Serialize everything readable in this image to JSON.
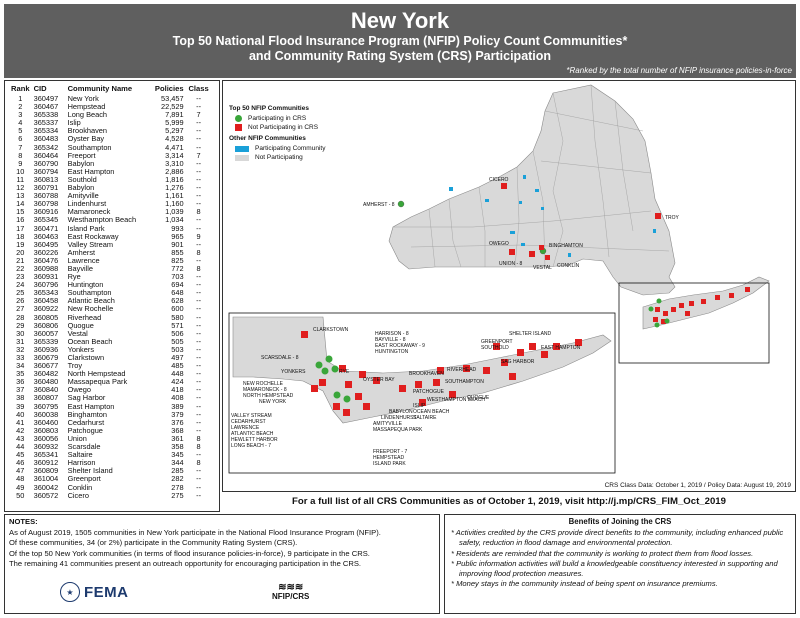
{
  "header": {
    "title": "New York",
    "subtitle_line1": "Top 50 National Flood Insurance Program (NFIP) Policy Count Communities*",
    "subtitle_line2": "and Community Rating System (CRS) Participation",
    "ranked_note": "*Ranked by the total number of NFIP insurance policies-in-force"
  },
  "table": {
    "headers": {
      "rank": "Rank",
      "cid": "CID",
      "community": "Community Name",
      "policies": "Policies",
      "class": "Class"
    },
    "rows": [
      [
        "1",
        "360497",
        "New York",
        "53,457",
        "--"
      ],
      [
        "2",
        "360467",
        "Hempstead",
        "22,529",
        "--"
      ],
      [
        "3",
        "365338",
        "Long Beach",
        "7,891",
        "7"
      ],
      [
        "4",
        "365337",
        "Islip",
        "5,999",
        "--"
      ],
      [
        "5",
        "365334",
        "Brookhaven",
        "5,297",
        "--"
      ],
      [
        "6",
        "360483",
        "Oyster Bay",
        "4,528",
        "--"
      ],
      [
        "7",
        "365342",
        "Southampton",
        "4,471",
        "--"
      ],
      [
        "8",
        "360464",
        "Freeport",
        "3,314",
        "7"
      ],
      [
        "9",
        "360790",
        "Babylon",
        "3,310",
        "--"
      ],
      [
        "10",
        "360794",
        "East Hampton",
        "2,886",
        "--"
      ],
      [
        "11",
        "360813",
        "Southold",
        "1,816",
        "--"
      ],
      [
        "12",
        "360791",
        "Babylon",
        "1,276",
        "--"
      ],
      [
        "13",
        "360788",
        "Amityville",
        "1,161",
        "--"
      ],
      [
        "14",
        "360798",
        "Lindenhurst",
        "1,160",
        "--"
      ],
      [
        "15",
        "360916",
        "Mamaroneck",
        "1,039",
        "8"
      ],
      [
        "16",
        "365345",
        "Westhampton Beach",
        "1,034",
        "--"
      ],
      [
        "17",
        "360471",
        "Island Park",
        "993",
        "--"
      ],
      [
        "18",
        "360463",
        "East Rockaway",
        "965",
        "9"
      ],
      [
        "19",
        "360495",
        "Valley Stream",
        "901",
        "--"
      ],
      [
        "20",
        "360226",
        "Amherst",
        "855",
        "8"
      ],
      [
        "21",
        "360476",
        "Lawrence",
        "825",
        "--"
      ],
      [
        "22",
        "360988",
        "Bayville",
        "772",
        "8"
      ],
      [
        "23",
        "360931",
        "Rye",
        "703",
        "--"
      ],
      [
        "24",
        "360796",
        "Huntington",
        "694",
        "--"
      ],
      [
        "25",
        "365343",
        "Southampton",
        "648",
        "--"
      ],
      [
        "26",
        "360458",
        "Atlantic Beach",
        "628",
        "--"
      ],
      [
        "27",
        "360922",
        "New Rochelle",
        "600",
        "--"
      ],
      [
        "28",
        "360805",
        "Riverhead",
        "580",
        "--"
      ],
      [
        "29",
        "360806",
        "Quogue",
        "571",
        "--"
      ],
      [
        "30",
        "360057",
        "Vestal",
        "506",
        "--"
      ],
      [
        "31",
        "365339",
        "Ocean Beach",
        "505",
        "--"
      ],
      [
        "32",
        "360936",
        "Yonkers",
        "503",
        "--"
      ],
      [
        "33",
        "360679",
        "Clarkstown",
        "497",
        "--"
      ],
      [
        "34",
        "360677",
        "Troy",
        "485",
        "--"
      ],
      [
        "35",
        "360482",
        "North Hempstead",
        "448",
        "--"
      ],
      [
        "36",
        "360480",
        "Massapequa Park",
        "424",
        "--"
      ],
      [
        "37",
        "360840",
        "Owego",
        "418",
        "--"
      ],
      [
        "38",
        "360807",
        "Sag Harbor",
        "408",
        "--"
      ],
      [
        "39",
        "360795",
        "East Hampton",
        "389",
        "--"
      ],
      [
        "40",
        "360038",
        "Binghamton",
        "379",
        "--"
      ],
      [
        "41",
        "360460",
        "Cedarhurst",
        "376",
        "--"
      ],
      [
        "42",
        "360803",
        "Patchogue",
        "368",
        "--"
      ],
      [
        "43",
        "360056",
        "Union",
        "361",
        "8"
      ],
      [
        "44",
        "360932",
        "Scarsdale",
        "358",
        "8"
      ],
      [
        "45",
        "365341",
        "Saltaire",
        "345",
        "--"
      ],
      [
        "46",
        "360912",
        "Harrison",
        "344",
        "8"
      ],
      [
        "47",
        "360809",
        "Shelter Island",
        "285",
        "--"
      ],
      [
        "48",
        "361004",
        "Greenport",
        "282",
        "--"
      ],
      [
        "49",
        "360042",
        "Conklin",
        "278",
        "--"
      ],
      [
        "50",
        "360572",
        "Cicero",
        "275",
        "--"
      ]
    ]
  },
  "legend": {
    "top50_title": "Top 50 NFIP Communities",
    "in_crs": "Participating in CRS",
    "not_in_crs": "Not Participating in CRS",
    "other_title": "Other NFIP Communities",
    "participating": "Participating Community",
    "not_participating": "Not Participating",
    "colors": {
      "crs": "#3aa63a",
      "non_crs": "#e01e1e",
      "participating": "#1aa0d8",
      "not_participating": "#d8d8d8"
    }
  },
  "map_labels": {
    "upstate": [
      "AMHERST - 8",
      "CICERO",
      "TROY",
      "OWEGO",
      "BINGHAMTON",
      "UNION - 8",
      "VESTAL",
      "CONKLIN"
    ],
    "inset": [
      "CLARKSTOWN",
      "HARRISON - 8",
      "BAYVILLE - 8",
      "EAST ROCKAWAY - 9",
      "HUNTINGTON",
      "SCARSDALE - 8",
      "YONKERS",
      "RYE",
      "NEW ROCHELLE",
      "MAMARONECK - 8",
      "NORTH HEMPSTEAD",
      "NEW YORK",
      "OYSTER BAY",
      "BROOKHAVEN",
      "RIVERHEAD",
      "SHELTER ISLAND",
      "GREENPORT",
      "SOUTHOLD",
      "SAG HARBOR",
      "EAST HAMPTON",
      "SOUTHAMPTON",
      "PATCHOGUE",
      "WESTHAMPTON BEACH",
      "QUOGUE",
      "ISLIP",
      "OCEAN BEACH",
      "SALTAIRE",
      "BABYLON",
      "LINDENHURST",
      "AMITYVILLE",
      "MASSAPEQUA PARK",
      "VALLEY STREAM",
      "CEDARHURST",
      "LAWRENCE",
      "ATLANTIC BEACH",
      "HEWLETT HARBOR",
      "LONG BEACH - 7",
      "FREEPORT - 7",
      "HEMPSTEAD",
      "ISLAND PARK"
    ]
  },
  "crs_date": "CRS Class Data: October 1, 2019 / Policy Data: August 19, 2019",
  "full_list": "For a full list of all CRS Communities as of October 1, 2019, visit http://j.mp/CRS_FIM_Oct_2019",
  "notes": {
    "title": "NOTES:",
    "lines": [
      "As of August 2019, 1505 communities in New York participate in the National Flood Insurance Program (NFIP).",
      "Of these communities, 34 (or 2%) participate in the Community Rating System (CRS).",
      "Of the top 50 New York communities (in terms of flood insurance policies-in-force), 9 participate in the CRS.",
      "The remaining 41 communities present an outreach opportunity for encouraging participation in the CRS."
    ]
  },
  "logos": {
    "fema": "FEMA",
    "nfip": "NFIP/CRS"
  },
  "benefits": {
    "title": "Benefits of Joining the CRS",
    "items": [
      "* Activities credited by the CRS provide direct benefits to the community, including enhanced public safety, reduction in flood damage and environmental protection.",
      "* Residents are reminded that the community is working to protect them from flood losses.",
      "* Public information activities will build a knowledgeable constituency interested in supporting and improving flood protection measures.",
      "* Money stays in the community instead of being spent on insurance premiums."
    ]
  }
}
